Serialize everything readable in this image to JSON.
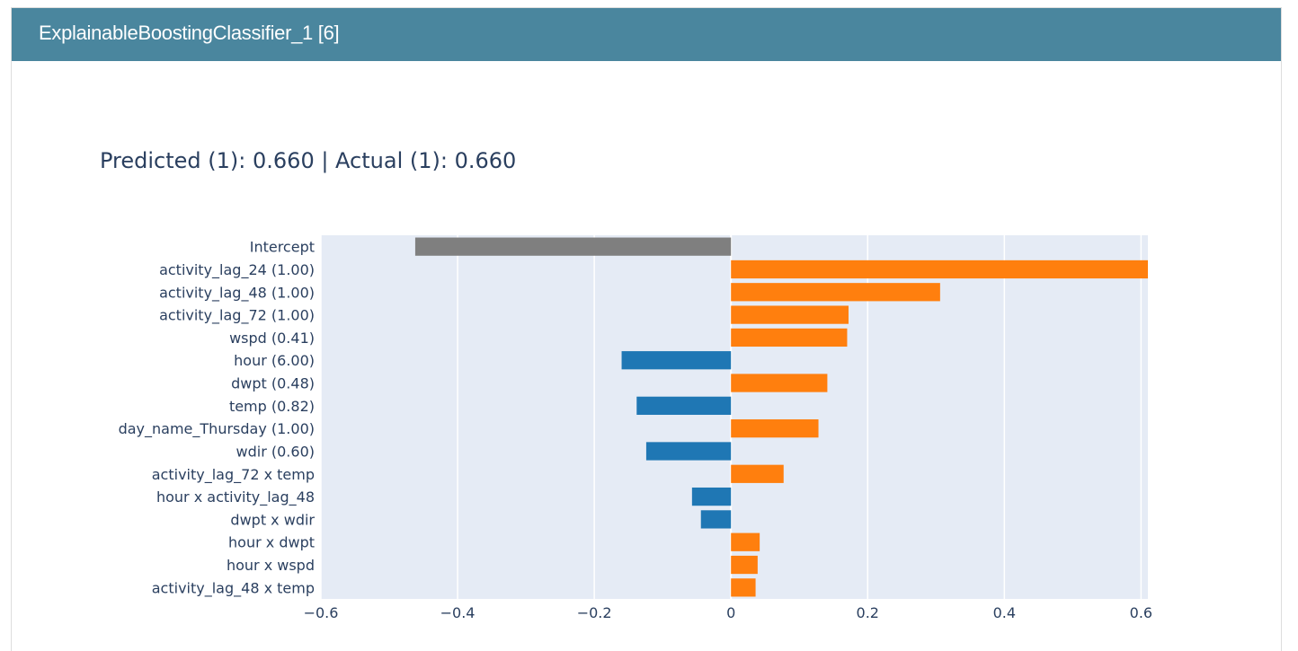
{
  "panel": {
    "title": "ExplainableBoostingClassifier_1 [6]"
  },
  "colors": {
    "header_bg": "#4a869e",
    "plot_bg": "#e5ebf5",
    "intercept": "#7f7f7f",
    "positive": "#ff7f0e",
    "negative": "#1f77b4",
    "text": "#2a3f5f"
  },
  "chart_data": {
    "type": "bar",
    "orientation": "horizontal",
    "title": "Predicted (1): 0.660 | Actual (1): 0.660",
    "xlim": [
      -0.6,
      0.61
    ],
    "xticks": [
      -0.6,
      -0.4,
      -0.2,
      0,
      0.2,
      0.4,
      0.6
    ],
    "xtick_labels": [
      "−0.6",
      "−0.4",
      "−0.2",
      "0",
      "0.2",
      "0.4",
      "0.6"
    ],
    "grid": true,
    "categories": [
      "Intercept",
      "activity_lag_24 (1.00)",
      "activity_lag_48 (1.00)",
      "activity_lag_72 (1.00)",
      "wspd (0.41)",
      "hour (6.00)",
      "dwpt (0.48)",
      "temp (0.82)",
      "day_name_Thursday (1.00)",
      "wdir (0.60)",
      "activity_lag_72 x temp",
      "hour x activity_lag_48",
      "dwpt x wdir",
      "hour x dwpt",
      "hour x wspd",
      "activity_lag_48 x temp"
    ],
    "values": [
      -0.462,
      0.61,
      0.306,
      0.172,
      0.17,
      -0.16,
      0.141,
      -0.138,
      0.128,
      -0.124,
      0.077,
      -0.057,
      -0.044,
      0.042,
      0.039,
      0.036
    ]
  }
}
